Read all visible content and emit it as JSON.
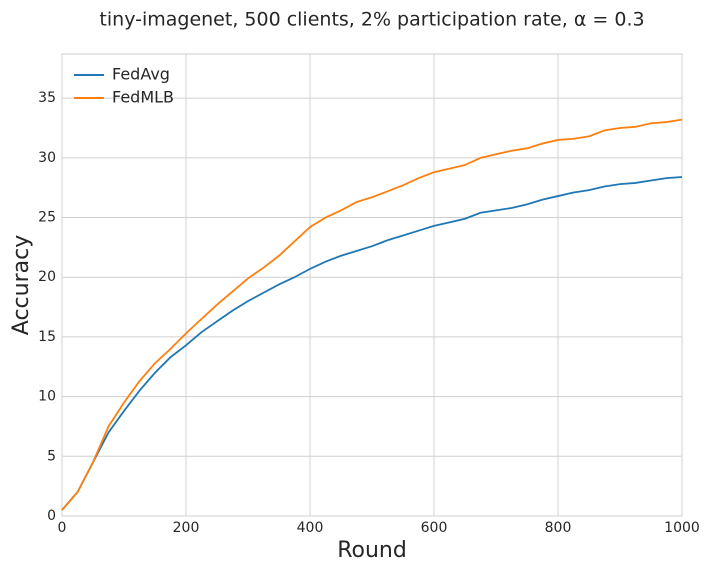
{
  "chart_data": {
    "type": "line",
    "title": "tiny-imagenet, 500 clients, 2% participation rate, α = 0.3",
    "x_label": "Round",
    "y_label": "Accuracy",
    "x": [
      0,
      25,
      50,
      75,
      100,
      125,
      150,
      175,
      200,
      225,
      250,
      275,
      300,
      325,
      350,
      375,
      400,
      425,
      450,
      475,
      500,
      525,
      550,
      575,
      600,
      625,
      650,
      675,
      700,
      725,
      750,
      775,
      800,
      825,
      850,
      875,
      900,
      925,
      950,
      975,
      1000
    ],
    "series": [
      {
        "name": "FedAvg",
        "color": "#1f77b4",
        "values": [
          0.5,
          2,
          4.5,
          7,
          8.8,
          10.5,
          12,
          13.3,
          14.3,
          15.4,
          16.3,
          17.2,
          18,
          18.7,
          19.4,
          20,
          20.7,
          21.3,
          21.8,
          22.2,
          22.6,
          23.1,
          23.5,
          23.9,
          24.3,
          24.6,
          24.9,
          25.4,
          25.6,
          25.8,
          26.1,
          26.5,
          26.8,
          27.1,
          27.3,
          27.6,
          27.8,
          27.9,
          28.1,
          28.3,
          28.4
        ]
      },
      {
        "name": "FedMLB",
        "color": "#ff7f0e",
        "values": [
          0.5,
          2,
          4.5,
          7.5,
          9.5,
          11.3,
          12.8,
          14,
          15.3,
          16.5,
          17.7,
          18.8,
          19.9,
          20.8,
          21.8,
          23,
          24.2,
          25,
          25.6,
          26.3,
          26.7,
          27.2,
          27.7,
          28.3,
          28.8,
          29.1,
          29.4,
          30,
          30.3,
          30.6,
          30.8,
          31.2,
          31.5,
          31.6,
          31.8,
          32.3,
          32.5,
          32.6,
          32.9,
          33,
          33.2
        ]
      }
    ],
    "xlim": [
      0,
      1000
    ],
    "xticks": [
      0,
      200,
      400,
      600,
      800,
      1000
    ],
    "ylim": [
      0,
      38.7
    ],
    "yticks": [
      0,
      5,
      10,
      15,
      20,
      25,
      30,
      35
    ],
    "grid": true,
    "legend": "upper left"
  }
}
